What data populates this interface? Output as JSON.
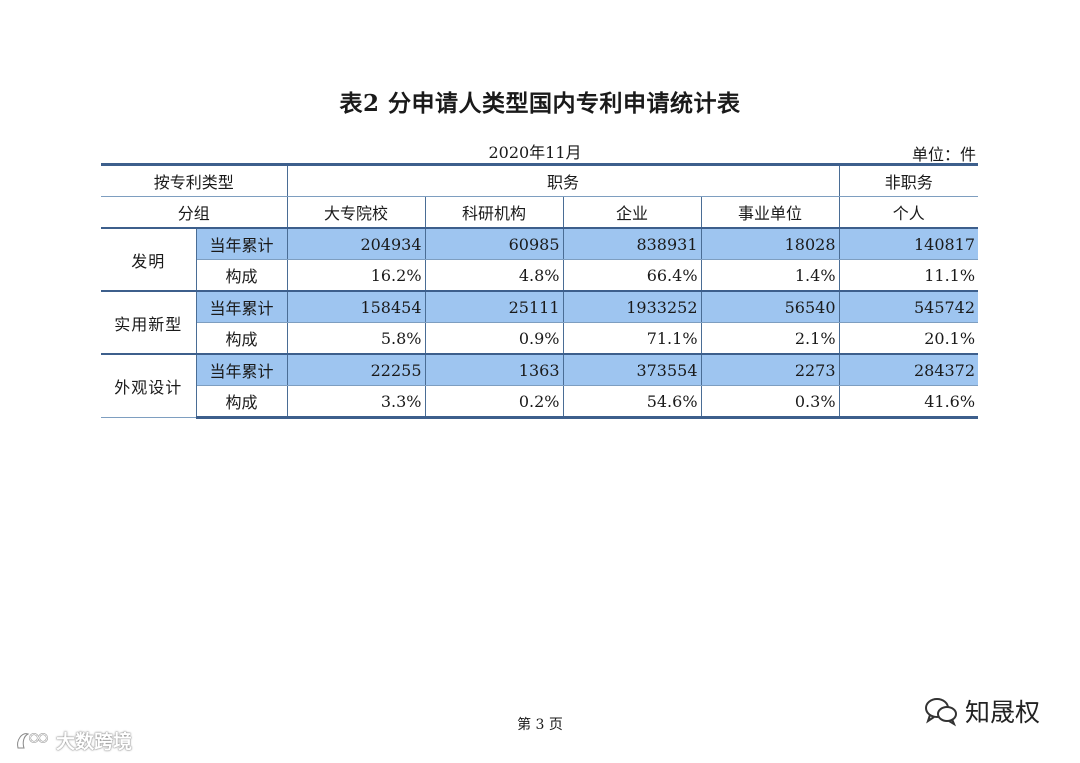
{
  "title": "表2  分申请人类型国内专利申请统计表",
  "date": "2020年11月",
  "unit": "单位：件",
  "header": {
    "group_label_top": "按专利类型",
    "group_label_bottom": "分组",
    "duty_label": "职务",
    "nonduty_label": "非职务",
    "columns": [
      "大专院校",
      "科研机构",
      "企业",
      "事业单位",
      "个人"
    ]
  },
  "rows": [
    {
      "type": "发明",
      "cum_label": "当年累计",
      "cum": [
        "204934",
        "60985",
        "838931",
        "18028",
        "140817"
      ],
      "comp_label": "构成",
      "comp": [
        "16.2%",
        "4.8%",
        "66.4%",
        "1.4%",
        "11.1%"
      ]
    },
    {
      "type": "实用新型",
      "cum_label": "当年累计",
      "cum": [
        "158454",
        "25111",
        "1933252",
        "56540",
        "545742"
      ],
      "comp_label": "构成",
      "comp": [
        "5.8%",
        "0.9%",
        "71.1%",
        "2.1%",
        "20.1%"
      ]
    },
    {
      "type": "外观设计",
      "cum_label": "当年累计",
      "cum": [
        "22255",
        "1363",
        "373554",
        "2273",
        "284372"
      ],
      "comp_label": "构成",
      "comp": [
        "3.3%",
        "0.2%",
        "54.6%",
        "0.3%",
        "41.6%"
      ]
    }
  ],
  "footer": {
    "page": "第 3 页"
  },
  "watermarks": {
    "left": "大数跨境",
    "right": "知晟权"
  },
  "colors": {
    "highlight_row": "#9ec5f0",
    "border": "#3d5f8c"
  }
}
